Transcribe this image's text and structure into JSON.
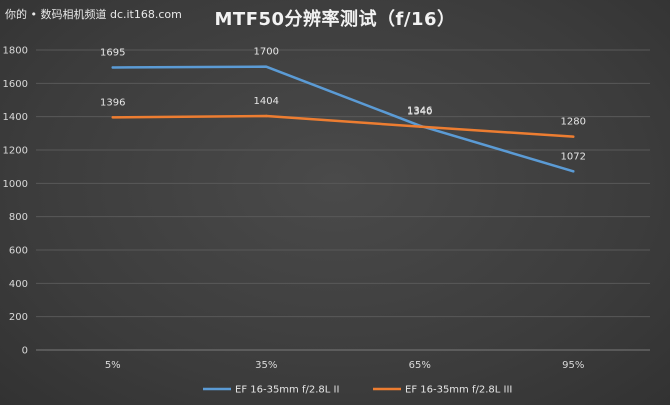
{
  "watermark": "你的 • 数码相机频道 dc.it168.com",
  "chart_data": {
    "type": "line",
    "title": "MTF50分辨率测试（f/16）",
    "categories": [
      "5%",
      "35%",
      "65%",
      "95%"
    ],
    "series": [
      {
        "name": "EF 16-35mm f/2.8L II",
        "values": [
          1695,
          1700,
          1346,
          1072
        ],
        "color": "#5b9bd5"
      },
      {
        "name": "EF 16-35mm f/2.8L III",
        "values": [
          1396,
          1404,
          1340,
          1280
        ],
        "color": "#ed7d31"
      }
    ],
    "ylim": [
      0,
      1800
    ],
    "yticks": [
      0,
      200,
      400,
      600,
      800,
      1000,
      1200,
      1400,
      1600,
      1800
    ],
    "grid": true,
    "legend": "bottom"
  }
}
